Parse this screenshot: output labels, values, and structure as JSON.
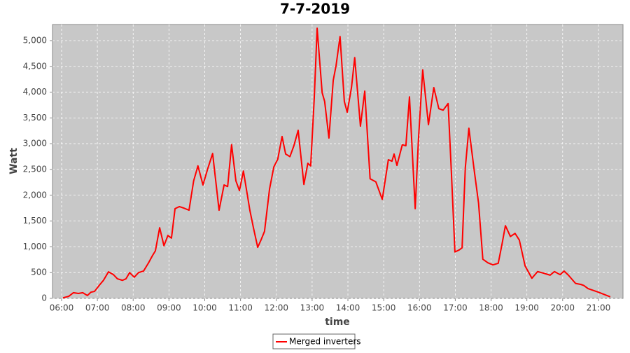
{
  "chart_data": {
    "type": "line",
    "title": "7-7-2019",
    "x_label": "time",
    "y_label": "Watt",
    "x": [
      6.04,
      6.2,
      6.33,
      6.47,
      6.59,
      6.72,
      6.82,
      6.92,
      7.06,
      7.17,
      7.31,
      7.45,
      7.56,
      7.7,
      7.8,
      7.9,
      8.03,
      8.15,
      8.29,
      8.43,
      8.54,
      8.62,
      8.74,
      8.86,
      8.97,
      9.07,
      9.17,
      9.29,
      9.42,
      9.56,
      9.69,
      9.81,
      9.95,
      10.09,
      10.22,
      10.4,
      10.54,
      10.64,
      10.75,
      10.87,
      10.97,
      11.08,
      11.26,
      11.36,
      11.48,
      11.57,
      11.67,
      11.81,
      11.93,
      12.04,
      12.16,
      12.26,
      12.38,
      12.49,
      12.61,
      12.77,
      12.88,
      12.96,
      13.06,
      13.14,
      13.28,
      13.35,
      13.47,
      13.59,
      13.67,
      13.78,
      13.9,
      13.98,
      14.1,
      14.19,
      14.35,
      14.47,
      14.62,
      14.78,
      14.96,
      15.13,
      15.23,
      15.29,
      15.37,
      15.52,
      15.62,
      15.72,
      15.88,
      15.97,
      16.09,
      16.25,
      16.4,
      16.54,
      16.66,
      16.8,
      16.89,
      16.99,
      17.11,
      17.19,
      17.28,
      17.38,
      17.52,
      17.65,
      17.77,
      17.91,
      18.05,
      18.2,
      18.3,
      18.4,
      18.54,
      18.67,
      18.79,
      18.95,
      19.14,
      19.3,
      19.46,
      19.65,
      19.77,
      19.93,
      20.04,
      20.16,
      20.36,
      20.51,
      20.59,
      20.71,
      21.0,
      21.33
    ],
    "series": [
      {
        "name": "Merged inverters",
        "color": "#ff0000",
        "values": [
          10,
          40,
          110,
          95,
          110,
          55,
          120,
          135,
          260,
          350,
          515,
          460,
          380,
          350,
          380,
          500,
          410,
          500,
          530,
          690,
          830,
          920,
          1370,
          1020,
          1220,
          1170,
          1740,
          1780,
          1750,
          1710,
          2280,
          2570,
          2200,
          2530,
          2810,
          1710,
          2200,
          2170,
          2980,
          2280,
          2090,
          2470,
          1710,
          1370,
          990,
          1130,
          1300,
          2120,
          2550,
          2700,
          3140,
          2800,
          2750,
          2960,
          3260,
          2210,
          2620,
          2570,
          3890,
          5240,
          3990,
          3820,
          3110,
          4230,
          4520,
          5080,
          3820,
          3610,
          4090,
          4670,
          3340,
          4020,
          2320,
          2260,
          1920,
          2690,
          2660,
          2800,
          2580,
          2980,
          2960,
          3910,
          1740,
          3070,
          4430,
          3370,
          4090,
          3680,
          3650,
          3780,
          2460,
          900,
          940,
          980,
          2530,
          3300,
          2530,
          1850,
          760,
          690,
          650,
          680,
          1030,
          1410,
          1200,
          1260,
          1130,
          630,
          390,
          520,
          490,
          450,
          520,
          460,
          530,
          450,
          290,
          270,
          250,
          190,
          120,
          30
        ]
      }
    ],
    "xlim": [
      5.746,
      21.686
    ],
    "xticks": [
      {
        "value": 6,
        "label": "06:00"
      },
      {
        "value": 7,
        "label": "07:00"
      },
      {
        "value": 8,
        "label": "08:00"
      },
      {
        "value": 9,
        "label": "09:00"
      },
      {
        "value": 10,
        "label": "10:00"
      },
      {
        "value": 11,
        "label": "11:00"
      },
      {
        "value": 12,
        "label": "12:00"
      },
      {
        "value": 13,
        "label": "13:00"
      },
      {
        "value": 14,
        "label": "14:00"
      },
      {
        "value": 15,
        "label": "15:00"
      },
      {
        "value": 16,
        "label": "16:00"
      },
      {
        "value": 17,
        "label": "17:00"
      },
      {
        "value": 18,
        "label": "18:00"
      },
      {
        "value": 19,
        "label": "19:00"
      },
      {
        "value": 20,
        "label": "20:00"
      },
      {
        "value": 21,
        "label": "21:00"
      }
    ],
    "ylim": [
      0,
      5312
    ],
    "yticks": [
      0,
      500,
      {
        "value": 1000,
        "label": "1,000"
      },
      {
        "value": 1500,
        "label": "1,500"
      },
      {
        "value": 2000,
        "label": "2,000"
      },
      {
        "value": 2500,
        "label": "2,500"
      },
      {
        "value": 3000,
        "label": "3,000"
      },
      {
        "value": 3500,
        "label": "3,500"
      },
      {
        "value": 4000,
        "label": "4,000"
      },
      {
        "value": 4500,
        "label": "4,500"
      },
      {
        "value": 5000,
        "label": "5,000"
      }
    ],
    "grid": true,
    "legend": "bottom"
  }
}
